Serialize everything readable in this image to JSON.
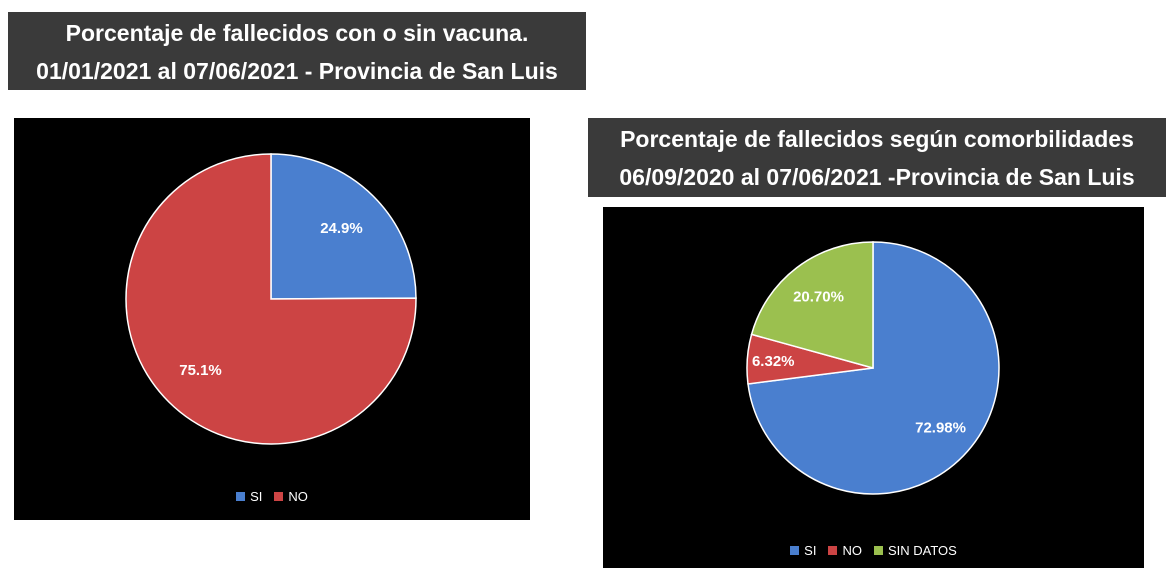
{
  "chart_data": [
    {
      "type": "pie",
      "title_line1": "Porcentaje de fallecidos con o sin vacuna.",
      "title_line2": "01/01/2021 al 07/06/2021 - Provincia de San Luis",
      "categories": [
        "SI",
        "NO"
      ],
      "values": [
        24.9,
        75.1
      ],
      "labels": [
        "24.9%",
        "75.1%"
      ],
      "colors": [
        "#4a7fcf",
        "#cc4444"
      ],
      "legend_position": "bottom"
    },
    {
      "type": "pie",
      "title_line1": "Porcentaje de fallecidos según comorbilidades",
      "title_line2": "06/09/2020 al 07/06/2021 -Provincia de San Luis",
      "categories": [
        "SI",
        "NO",
        "SIN DATOS"
      ],
      "values": [
        72.98,
        6.32,
        20.7
      ],
      "labels": [
        "72.98%",
        "6.32%",
        "20.70%"
      ],
      "colors": [
        "#4a7fcf",
        "#cc4444",
        "#9bc04f"
      ],
      "legend_position": "bottom"
    }
  ]
}
